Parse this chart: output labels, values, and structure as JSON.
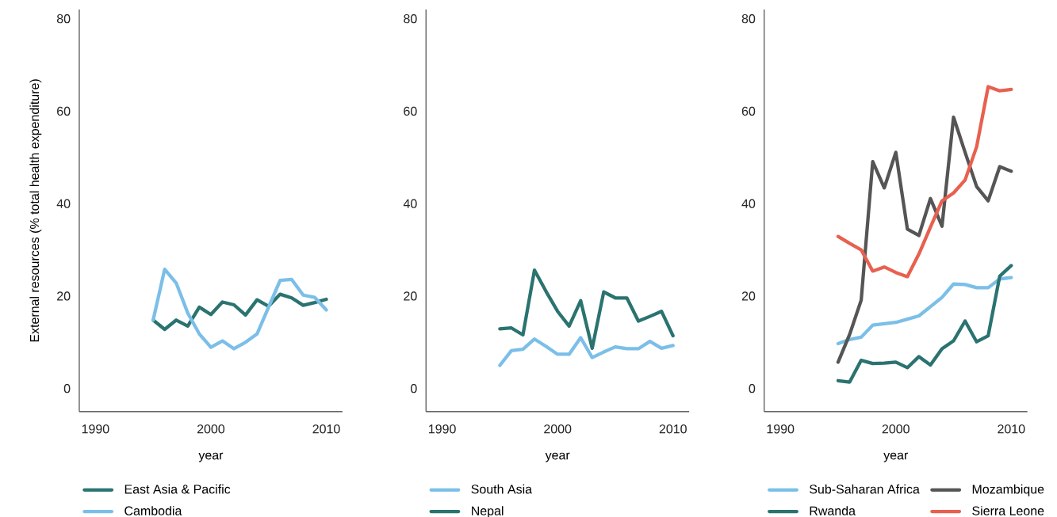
{
  "chart_data": [
    {
      "type": "line",
      "xlabel": "year",
      "ylabel": "External resources (% total health expenditure)",
      "x": [
        1995,
        1996,
        1997,
        1998,
        1999,
        2000,
        2001,
        2002,
        2003,
        2004,
        2005,
        2006,
        2007,
        2008,
        2009,
        2010
      ],
      "xlim": [
        1988.6,
        2011.4
      ],
      "ylim": [
        -5,
        82
      ],
      "xticks": [
        1990,
        2000,
        2010
      ],
      "yticks": [
        0,
        20,
        40,
        60,
        80
      ],
      "legend": "bottom",
      "series": [
        {
          "name": "East Asia & Pacific",
          "color": "#2a7370",
          "values": [
            14.8,
            12.8,
            14.8,
            13.5,
            17.6,
            16.0,
            18.7,
            18.1,
            15.9,
            19.2,
            17.8,
            20.4,
            19.6,
            18.0,
            18.6,
            19.3
          ]
        },
        {
          "name": "Cambodia",
          "color": "#7bbfe8",
          "values": [
            14.8,
            25.8,
            22.8,
            16.3,
            11.8,
            8.9,
            10.3,
            8.6,
            10.0,
            11.8,
            17.6,
            23.4,
            23.6,
            20.2,
            19.7,
            17.0
          ]
        }
      ]
    },
    {
      "type": "line",
      "xlabel": "year",
      "x": [
        1995,
        1996,
        1997,
        1998,
        1999,
        2000,
        2001,
        2002,
        2003,
        2004,
        2005,
        2006,
        2007,
        2008,
        2009,
        2010
      ],
      "xlim": [
        1988.6,
        2011.4
      ],
      "ylim": [
        -5,
        82
      ],
      "xticks": [
        1990,
        2000,
        2010
      ],
      "yticks": [
        0,
        20,
        40,
        60,
        80
      ],
      "legend": "bottom",
      "series": [
        {
          "name": "South Asia",
          "color": "#7bbfe8",
          "values": [
            5.0,
            8.2,
            8.5,
            10.7,
            9.1,
            7.4,
            7.4,
            11.0,
            6.7,
            7.9,
            9.0,
            8.6,
            8.6,
            10.2,
            8.7,
            9.3
          ]
        },
        {
          "name": "Nepal",
          "color": "#2a7370",
          "values": [
            12.9,
            13.1,
            11.6,
            25.6,
            21.0,
            16.7,
            13.5,
            19.0,
            8.7,
            20.9,
            19.6,
            19.6,
            14.6,
            15.6,
            16.7,
            11.4
          ]
        }
      ]
    },
    {
      "type": "line",
      "xlabel": "year",
      "x": [
        1995,
        1996,
        1997,
        1998,
        1999,
        2000,
        2001,
        2002,
        2003,
        2004,
        2005,
        2006,
        2007,
        2008,
        2009,
        2010
      ],
      "xlim": [
        1988.6,
        2011.4
      ],
      "ylim": [
        -5,
        82
      ],
      "xticks": [
        1990,
        2000,
        2010
      ],
      "yticks": [
        0,
        20,
        40,
        60,
        80
      ],
      "legend": "bottom",
      "series": [
        {
          "name": "Sub-Saharan Africa",
          "color": "#7bbfe8",
          "values": [
            9.7,
            10.6,
            11.1,
            13.7,
            14.0,
            14.3,
            15.0,
            15.7,
            17.7,
            19.7,
            22.6,
            22.5,
            21.8,
            21.8,
            23.7,
            24.0
          ]
        },
        {
          "name": "Mozambique",
          "color": "#555555",
          "values": [
            5.7,
            11.7,
            19.1,
            49.1,
            43.4,
            51.1,
            34.5,
            33.1,
            41.1,
            35.1,
            58.7,
            51.1,
            43.7,
            40.6,
            48.0,
            47.0
          ]
        },
        {
          "name": "Rwanda",
          "color": "#2a7370",
          "values": [
            1.7,
            1.4,
            6.1,
            5.4,
            5.5,
            5.7,
            4.5,
            6.9,
            5.1,
            8.6,
            10.3,
            14.6,
            10.1,
            11.4,
            24.3,
            26.6
          ]
        },
        {
          "name": "Sierra Leone",
          "color": "#e8604f",
          "values": [
            32.9,
            31.4,
            30.0,
            25.4,
            26.3,
            25.1,
            24.2,
            29.1,
            34.9,
            40.6,
            42.3,
            45.1,
            52.3,
            65.3,
            64.4,
            64.7
          ]
        }
      ]
    }
  ]
}
